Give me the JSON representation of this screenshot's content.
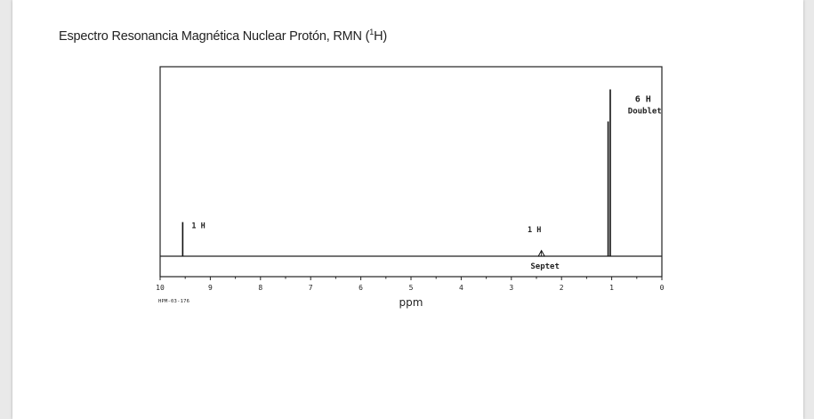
{
  "title_main": "Espectro Resonancia Magnética Nuclear Protón, RMN (",
  "title_sup": "1",
  "title_end": "H)",
  "spectrum_code": "HPM-03-176",
  "chart_data": {
    "type": "line",
    "xlabel": "ppm",
    "xlim": [
      10,
      0
    ],
    "x_reversed": true,
    "x_ticks": [
      10,
      9,
      8,
      7,
      6,
      5,
      4,
      3,
      2,
      1,
      0
    ],
    "peaks": [
      {
        "ppm": 9.55,
        "integration": "1 H",
        "multiplicity": "",
        "relative_height": 0.18
      },
      {
        "ppm": 2.4,
        "integration": "1 H",
        "multiplicity": "Septet",
        "relative_height": 0.03
      },
      {
        "ppm": 1.05,
        "integration": "6 H",
        "multiplicity": "Doublet",
        "relative_height": 0.88
      }
    ]
  }
}
